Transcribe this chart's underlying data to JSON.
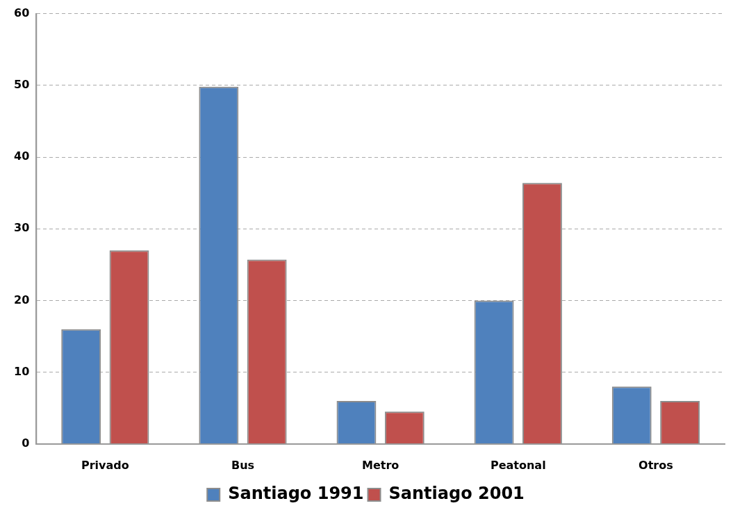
{
  "chart_data": {
    "type": "bar",
    "categories": [
      "Privado",
      "Bus",
      "Metro",
      "Peatonal",
      "Otros"
    ],
    "series": [
      {
        "name": "Santiago 1991",
        "color": "#4f81bd",
        "values": [
          16,
          49.8,
          6,
          20,
          8
        ]
      },
      {
        "name": "Santiago 2001",
        "color": "#c0504d",
        "values": [
          27,
          25.7,
          4.5,
          36.4,
          6
        ]
      }
    ],
    "ylim": [
      0,
      60
    ],
    "yticks": [
      0,
      10,
      20,
      30,
      40,
      50,
      60
    ],
    "grid": "y",
    "legend": "bottom"
  }
}
